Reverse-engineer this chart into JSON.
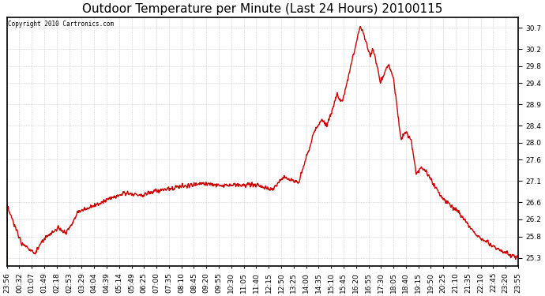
{
  "title": "Outdoor Temperature per Minute (Last 24 Hours) 20100115",
  "copyright_text": "Copyright 2010 Cartronics.com",
  "line_color": "#cc0000",
  "background_color": "#ffffff",
  "plot_bg_color": "#ffffff",
  "grid_color": "#b0b0b0",
  "yticks": [
    25.3,
    25.8,
    26.2,
    26.6,
    27.1,
    27.6,
    28.0,
    28.4,
    28.9,
    29.4,
    29.8,
    30.2,
    30.7
  ],
  "ylim": [
    25.1,
    30.95
  ],
  "xtick_labels": [
    "23:56",
    "00:32",
    "01:07",
    "01:49",
    "02:18",
    "02:53",
    "03:29",
    "04:04",
    "04:39",
    "05:14",
    "05:49",
    "06:25",
    "07:00",
    "07:35",
    "08:10",
    "08:45",
    "09:20",
    "09:55",
    "10:30",
    "11:05",
    "11:40",
    "12:15",
    "12:50",
    "13:25",
    "14:00",
    "14:35",
    "15:10",
    "15:45",
    "16:20",
    "16:55",
    "17:30",
    "18:05",
    "18:40",
    "19:15",
    "19:50",
    "20:25",
    "21:10",
    "21:35",
    "22:10",
    "22:45",
    "23:20",
    "23:55"
  ],
  "line_width": 1.0,
  "title_fontsize": 11,
  "tick_fontsize": 6.5
}
